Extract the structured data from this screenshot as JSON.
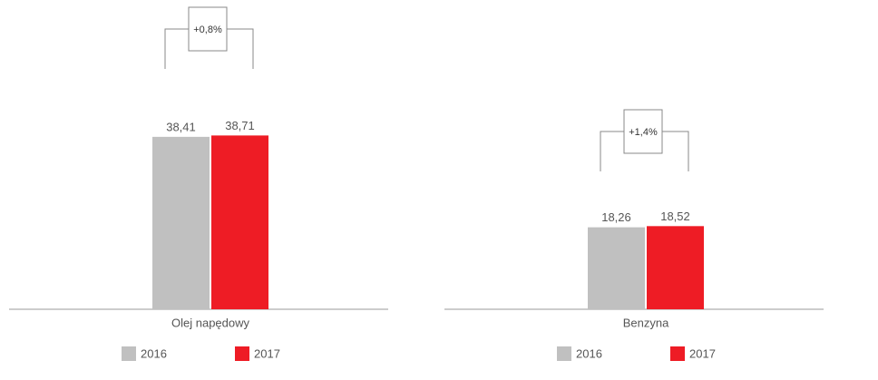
{
  "chart_data": [
    {
      "type": "bar",
      "categories": [
        "Olej napędowy"
      ],
      "annotation": "+0,8%",
      "legend": "bottom",
      "series": [
        {
          "name": "2016",
          "color": "#c0c0c0",
          "values": [
            38.41
          ],
          "value_labels": [
            "38,41"
          ]
        },
        {
          "name": "2017",
          "color": "#ee1c25",
          "values": [
            38.71
          ],
          "value_labels": [
            "38,71"
          ]
        }
      ]
    },
    {
      "type": "bar",
      "categories": [
        "Benzyna"
      ],
      "annotation": "+1,4%",
      "legend": "bottom",
      "series": [
        {
          "name": "2016",
          "color": "#c0c0c0",
          "values": [
            18.26
          ],
          "value_labels": [
            "18,26"
          ]
        },
        {
          "name": "2017",
          "color": "#ee1c25",
          "values": [
            18.52
          ],
          "value_labels": [
            "18,52"
          ]
        }
      ]
    }
  ]
}
